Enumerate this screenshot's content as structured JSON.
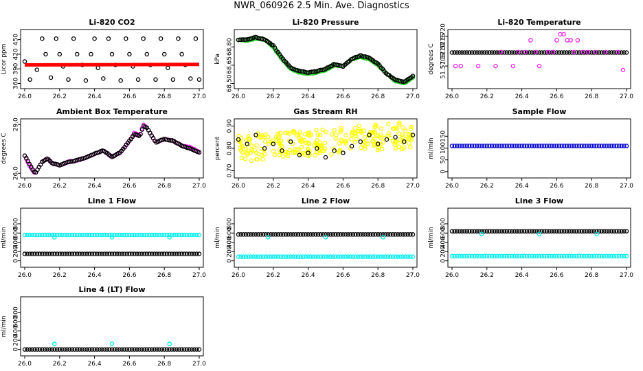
{
  "title": "NWR_060926  2.5 Min. Ave. Diagnostics",
  "colors": {
    "black": "#000000",
    "red": "#ff0000",
    "green": "#22cc22",
    "magenta": "#ee22ee",
    "yellow": "#ffff00",
    "cyan": "#00eeee",
    "blue": "#0000cc"
  },
  "chart_data": [
    {
      "id": "co2",
      "type": "scatter",
      "title": "Li-820 CO2",
      "ylabel": "Licor ppm",
      "xlim": [
        26.0,
        27.0
      ],
      "xticks": [
        "26.0",
        "26.2",
        "26.4",
        "26.6",
        "26.8",
        "27.0"
      ],
      "ylim": [
        355,
        465
      ],
      "yticks": [
        "360",
        "390",
        "420",
        "450"
      ],
      "ytick_values": [
        360,
        390,
        420,
        450
      ],
      "series": [
        {
          "name": "points",
          "color": "black",
          "x": [
            26.0,
            26.03,
            26.07,
            26.1,
            26.12,
            26.15,
            26.18,
            26.2,
            26.22,
            26.25,
            26.28,
            26.3,
            26.33,
            26.35,
            26.38,
            26.4,
            26.42,
            26.45,
            26.48,
            26.5,
            26.52,
            26.55,
            26.58,
            26.6,
            26.62,
            26.65,
            26.68,
            26.7,
            26.72,
            26.75,
            26.78,
            26.8,
            26.82,
            26.85,
            26.88,
            26.9,
            26.92,
            26.95,
            26.98,
            27.0
          ],
          "values": [
            405,
            368,
            388,
            452,
            420,
            372,
            452,
            420,
            395,
            368,
            452,
            420,
            398,
            366,
            420,
            452,
            392,
            370,
            452,
            420,
            398,
            366,
            452,
            420,
            395,
            368,
            452,
            420,
            398,
            368,
            452,
            420,
            392,
            368,
            452,
            420,
            398,
            370,
            452,
            368
          ]
        },
        {
          "name": "ref line",
          "color": "red",
          "style": "thick",
          "x": [
            26.0,
            27.0
          ],
          "values": [
            398,
            399
          ]
        }
      ]
    },
    {
      "id": "pressure",
      "type": "scatter",
      "title": "Li-820 Pressure",
      "ylabel": "kPa",
      "xlim": [
        26.0,
        27.0
      ],
      "xticks": [
        "26.0",
        "26.2",
        "26.4",
        "26.6",
        "26.8",
        "27.0"
      ],
      "ylim": [
        68.48,
        68.92
      ],
      "yticks": [
        "68.50",
        "68.65",
        "68.80"
      ],
      "ytick_values": [
        68.5,
        68.65,
        68.8
      ],
      "series": [
        {
          "name": "green",
          "color": "green",
          "x": [
            26.0,
            26.05,
            26.1,
            26.15,
            26.2,
            26.25,
            26.3,
            26.35,
            26.4,
            26.45,
            26.5,
            26.55,
            26.6,
            26.65,
            26.7,
            26.75,
            26.8,
            26.85,
            26.9,
            26.95,
            27.0
          ],
          "values": [
            68.86,
            68.85,
            68.87,
            68.86,
            68.8,
            68.7,
            68.62,
            68.59,
            68.58,
            68.59,
            68.61,
            68.65,
            68.64,
            68.7,
            68.72,
            68.7,
            68.65,
            68.58,
            68.52,
            68.5,
            68.55
          ]
        },
        {
          "name": "black",
          "color": "black",
          "x": [
            26.0,
            26.05,
            26.1,
            26.15,
            26.2,
            26.25,
            26.3,
            26.35,
            26.4,
            26.45,
            26.5,
            26.55,
            26.6,
            26.65,
            26.7,
            26.75,
            26.8,
            26.85,
            26.9,
            26.95,
            27.0
          ],
          "values": [
            68.86,
            68.86,
            68.88,
            68.86,
            68.81,
            68.71,
            68.63,
            68.6,
            68.59,
            68.6,
            68.62,
            68.66,
            68.64,
            68.7,
            68.73,
            68.71,
            68.66,
            68.58,
            68.53,
            68.51,
            68.56
          ]
        }
      ]
    },
    {
      "id": "litemp",
      "type": "scatter",
      "title": "Li-820 Temperature",
      "ylabel": "degrees C",
      "xlim": [
        26.0,
        27.0
      ],
      "xticks": [
        "26.0",
        "26.2",
        "26.4",
        "26.6",
        "26.8",
        "27.0"
      ],
      "ylim": [
        51.5695,
        51.5722
      ],
      "yticks": [
        "51.5705",
        "51.5720"
      ],
      "ytick_values": [
        51.5705,
        51.572
      ],
      "extra_yticks": [
        "51.5710",
        "51.5715"
      ],
      "series": [
        {
          "name": "black",
          "color": "black",
          "style": "band",
          "x": [
            26.0,
            27.0
          ],
          "values": [
            51.57118,
            51.57118
          ]
        },
        {
          "name": "magenta",
          "color": "magenta",
          "x": [
            26.02,
            26.05,
            26.15,
            26.25,
            26.28,
            26.35,
            26.38,
            26.42,
            26.45,
            26.48,
            26.5,
            26.55,
            26.58,
            26.6,
            26.62,
            26.64,
            26.66,
            26.68,
            26.7,
            26.72,
            26.75,
            26.78,
            26.82,
            26.88,
            26.95,
            26.98
          ],
          "values": [
            51.5705,
            51.5705,
            51.5705,
            51.5705,
            51.5712,
            51.5705,
            51.5712,
            51.5712,
            51.5718,
            51.5712,
            51.5705,
            51.5712,
            51.5712,
            51.5718,
            51.5721,
            51.5721,
            51.5718,
            51.5718,
            51.5712,
            51.5718,
            51.5712,
            51.5712,
            51.5712,
            51.5712,
            51.5712,
            51.5703
          ]
        }
      ]
    },
    {
      "id": "ambtemp",
      "type": "scatter",
      "title": "Ambient Box Temperature",
      "ylabel": "degrees C",
      "xlim": [
        26.0,
        27.0
      ],
      "xticks": [
        "26.0",
        "26.2",
        "26.4",
        "26.6",
        "26.8",
        "27.0"
      ],
      "ylim": [
        25.88,
        29.18
      ],
      "yticks": [
        "26.0",
        "29.0"
      ],
      "ytick_values": [
        26.0,
        29.0
      ],
      "series": [
        {
          "name": "magenta",
          "color": "magenta",
          "x": [
            26.0,
            26.03,
            26.06,
            26.1,
            26.13,
            26.16,
            26.2,
            26.25,
            26.3,
            26.33,
            26.36,
            26.4,
            26.45,
            26.5,
            26.55,
            26.6,
            26.63,
            26.66,
            26.68,
            26.7,
            26.75,
            26.8,
            26.85,
            26.9,
            26.95,
            27.0
          ],
          "values": [
            27.1,
            26.4,
            26.0,
            26.7,
            26.9,
            26.6,
            26.5,
            26.7,
            26.8,
            26.9,
            27.0,
            27.2,
            27.4,
            27.0,
            27.3,
            28.0,
            28.5,
            28.3,
            29.0,
            28.8,
            27.9,
            28.1,
            28.0,
            27.7,
            27.6,
            27.3
          ]
        },
        {
          "name": "black",
          "color": "black",
          "x": [
            26.0,
            26.03,
            26.06,
            26.1,
            26.13,
            26.16,
            26.2,
            26.25,
            26.3,
            26.33,
            26.36,
            26.4,
            26.45,
            26.5,
            26.55,
            26.6,
            26.63,
            26.66,
            26.68,
            26.7,
            26.75,
            26.8,
            26.85,
            26.9,
            26.95,
            27.0
          ],
          "values": [
            27.1,
            26.5,
            26.0,
            26.7,
            26.9,
            26.6,
            26.5,
            26.7,
            26.8,
            26.9,
            27.0,
            27.2,
            27.4,
            27.0,
            27.3,
            28.0,
            28.4,
            28.3,
            28.9,
            28.8,
            27.9,
            28.1,
            28.0,
            27.7,
            27.5,
            27.3
          ]
        }
      ]
    },
    {
      "id": "rh",
      "type": "scatter",
      "title": "Gas Stream RH",
      "ylabel": "percent",
      "xlim": [
        26.0,
        27.0
      ],
      "xticks": [
        "26.0",
        "26.2",
        "26.4",
        "26.6",
        "26.8",
        "27.0"
      ],
      "ylim": [
        0.68,
        0.92
      ],
      "yticks": [
        "0.70",
        "0.80",
        "0.90"
      ],
      "ytick_values": [
        0.7,
        0.8,
        0.9
      ],
      "series": [
        {
          "name": "yellow",
          "color": "yellow",
          "style": "cloud",
          "x": [
            26.0,
            27.0
          ],
          "values": [
            0.8,
            0.86
          ]
        },
        {
          "name": "black",
          "color": "black",
          "x": [
            26.0,
            26.05,
            26.1,
            26.15,
            26.2,
            26.25,
            26.3,
            26.35,
            26.4,
            26.45,
            26.5,
            26.55,
            26.6,
            26.65,
            26.7,
            26.75,
            26.8,
            26.85,
            26.9,
            26.95,
            27.0
          ],
          "values": [
            0.84,
            0.82,
            0.86,
            0.8,
            0.82,
            0.79,
            0.83,
            0.77,
            0.78,
            0.8,
            0.76,
            0.79,
            0.78,
            0.81,
            0.83,
            0.86,
            0.82,
            0.84,
            0.85,
            0.83,
            0.86
          ]
        }
      ]
    },
    {
      "id": "sampleflow",
      "type": "scatter",
      "title": "Sample Flow",
      "ylabel": "ml/min",
      "xlim": [
        26.0,
        27.0
      ],
      "xticks": [
        "26.0",
        "26.2",
        "26.4",
        "26.6",
        "26.8",
        "27.0"
      ],
      "ylim": [
        -15,
        212
      ],
      "yticks": [
        "0",
        "50",
        "100",
        "150"
      ],
      "ytick_values": [
        0,
        50,
        100,
        150
      ],
      "series": [
        {
          "name": "blue",
          "color": "blue",
          "style": "band",
          "x": [
            26.0,
            27.0
          ],
          "values": [
            109,
            109
          ]
        }
      ]
    },
    {
      "id": "line1",
      "type": "scatter",
      "title": "Line 1 Flow",
      "ylabel": "ml/min",
      "xlim": [
        26.0,
        27.0
      ],
      "xticks": [
        "26.0",
        "26.2",
        "26.4",
        "26.6",
        "26.8",
        "27.0"
      ],
      "ylim": [
        -80,
        1080
      ],
      "yticks": [
        "0",
        "200",
        "400",
        "600",
        "800"
      ],
      "ytick_values": [
        0,
        200,
        400,
        600,
        800
      ],
      "series": [
        {
          "name": "cyan",
          "color": "cyan",
          "style": "band",
          "x": [
            26.0,
            27.0
          ],
          "values": [
            560,
            560
          ]
        },
        {
          "name": "black",
          "color": "black",
          "style": "band",
          "x": [
            26.0,
            27.0
          ],
          "values": [
            150,
            150
          ]
        },
        {
          "name": "cyan outliers",
          "color": "cyan",
          "x": [
            26.17,
            26.5,
            26.83
          ],
          "values": [
            510,
            510,
            510
          ]
        }
      ]
    },
    {
      "id": "line2",
      "type": "scatter",
      "title": "Line 2 Flow",
      "ylabel": "ml/min",
      "xlim": [
        26.0,
        27.0
      ],
      "xticks": [
        "26.0",
        "26.2",
        "26.4",
        "26.6",
        "26.8",
        "27.0"
      ],
      "ylim": [
        -80,
        1080
      ],
      "yticks": [
        "0",
        "200",
        "400",
        "600",
        "800"
      ],
      "ytick_values": [
        0,
        200,
        400,
        600,
        800
      ],
      "series": [
        {
          "name": "cyan",
          "color": "cyan",
          "style": "band",
          "x": [
            26.0,
            27.0
          ],
          "values": [
            90,
            90
          ]
        },
        {
          "name": "black",
          "color": "black",
          "style": "band",
          "x": [
            26.0,
            27.0
          ],
          "values": [
            570,
            570
          ]
        },
        {
          "name": "cyan outliers",
          "color": "cyan",
          "x": [
            26.17,
            26.5,
            26.83
          ],
          "values": [
            510,
            510,
            510
          ]
        }
      ]
    },
    {
      "id": "line3",
      "type": "scatter",
      "title": "Line 3 Flow",
      "ylabel": "ml/min",
      "xlim": [
        26.0,
        27.0
      ],
      "xticks": [
        "26.0",
        "26.2",
        "26.4",
        "26.6",
        "26.8",
        "27.0"
      ],
      "ylim": [
        -80,
        1080
      ],
      "yticks": [
        "0",
        "200",
        "400",
        "600",
        "800"
      ],
      "ytick_values": [
        0,
        200,
        400,
        600,
        800
      ],
      "series": [
        {
          "name": "cyan",
          "color": "cyan",
          "style": "band",
          "x": [
            26.0,
            27.0
          ],
          "values": [
            100,
            100
          ]
        },
        {
          "name": "black",
          "color": "black",
          "style": "band",
          "x": [
            26.0,
            27.0
          ],
          "values": [
            640,
            640
          ]
        },
        {
          "name": "cyan outliers",
          "color": "cyan",
          "x": [
            26.17,
            26.5,
            26.83
          ],
          "values": [
            580,
            580,
            580
          ]
        }
      ]
    },
    {
      "id": "line4",
      "type": "scatter",
      "title": "Line 4 (LT) Flow",
      "ylabel": "ml/min",
      "xlim": [
        26.0,
        27.0
      ],
      "xticks": [
        "26.0",
        "26.2",
        "26.4",
        "26.6",
        "26.8",
        "27.0"
      ],
      "ylim": [
        -80,
        1080
      ],
      "yticks": [
        "0",
        "200",
        "400",
        "600",
        "800"
      ],
      "ytick_values": [
        0,
        200,
        400,
        600,
        800
      ],
      "series": [
        {
          "name": "black",
          "color": "black",
          "style": "band",
          "x": [
            26.0,
            27.0
          ],
          "values": [
            0,
            0
          ]
        },
        {
          "name": "cyan outliers",
          "color": "cyan",
          "x": [
            26.17,
            26.5,
            26.83
          ],
          "values": [
            120,
            120,
            120
          ]
        }
      ]
    }
  ]
}
